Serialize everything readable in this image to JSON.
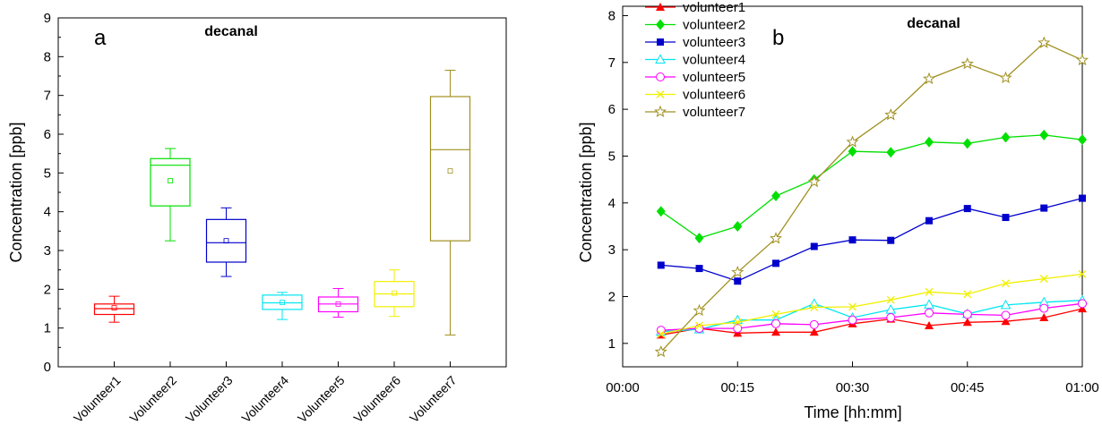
{
  "chart_data": [
    {
      "panel": "a",
      "type": "box",
      "title": "decanal",
      "xlabel": "",
      "ylabel": "Concentration [ppb]",
      "ylim": [
        0,
        9
      ],
      "yticks": [
        0,
        1,
        2,
        3,
        4,
        5,
        6,
        7,
        8,
        9
      ],
      "categories": [
        "Volunteer1",
        "Volunteer2",
        "Volunteer3",
        "Volunteer4",
        "Volunteer5",
        "Volunteer6",
        "Volunteer7"
      ],
      "boxes": [
        {
          "name": "Volunteer1",
          "color": "#ff0000",
          "min": 1.15,
          "q1": 1.35,
          "median": 1.5,
          "q3": 1.62,
          "max": 1.82,
          "mean": 1.52
        },
        {
          "name": "Volunteer2",
          "color": "#00e000",
          "min": 3.25,
          "q1": 4.15,
          "median": 5.2,
          "q3": 5.37,
          "max": 5.63,
          "mean": 4.8
        },
        {
          "name": "Volunteer3",
          "color": "#0000cc",
          "min": 2.33,
          "q1": 2.7,
          "median": 3.2,
          "q3": 3.8,
          "max": 4.1,
          "mean": 3.25
        },
        {
          "name": "Volunteer4",
          "color": "#00e6f0",
          "min": 1.22,
          "q1": 1.48,
          "median": 1.65,
          "q3": 1.85,
          "max": 1.92,
          "mean": 1.66
        },
        {
          "name": "Volunteer5",
          "color": "#ff00ff",
          "min": 1.28,
          "q1": 1.42,
          "median": 1.62,
          "q3": 1.8,
          "max": 2.02,
          "mean": 1.62
        },
        {
          "name": "Volunteer6",
          "color": "#f0f000",
          "min": 1.3,
          "q1": 1.55,
          "median": 1.88,
          "q3": 2.2,
          "max": 2.5,
          "mean": 1.9
        },
        {
          "name": "Volunteer7",
          "color": "#a09020",
          "min": 0.82,
          "q1": 3.25,
          "median": 5.6,
          "q3": 6.97,
          "max": 7.65,
          "mean": 5.05
        }
      ]
    },
    {
      "panel": "b",
      "type": "line",
      "title": "decanal",
      "xlabel": "Time [hh:mm]",
      "ylabel": "Concentration [ppb]",
      "xlim": [
        0,
        60
      ],
      "ylim": [
        0.5,
        8.2
      ],
      "xticks": [
        0,
        15,
        30,
        45,
        60
      ],
      "xtick_labels": [
        "00:00",
        "00:15",
        "00:30",
        "00:45",
        "01:00"
      ],
      "yticks": [
        1,
        2,
        3,
        4,
        5,
        6,
        7,
        8
      ],
      "legend_position": "top-left",
      "x": [
        5,
        10,
        15,
        20,
        25,
        30,
        35,
        40,
        45,
        50,
        55,
        60
      ],
      "series": [
        {
          "name": "volunteer1",
          "color": "#ff0000",
          "marker": "triangle",
          "values": [
            1.18,
            1.32,
            1.22,
            1.24,
            1.24,
            1.42,
            1.52,
            1.38,
            1.45,
            1.47,
            1.55,
            1.74
          ]
        },
        {
          "name": "volunteer2",
          "color": "#00e000",
          "marker": "diamond",
          "values": [
            3.82,
            3.25,
            3.5,
            4.15,
            4.5,
            5.1,
            5.08,
            5.3,
            5.27,
            5.4,
            5.45,
            5.35
          ]
        },
        {
          "name": "volunteer3",
          "color": "#0000cc",
          "marker": "square",
          "values": [
            2.67,
            2.6,
            2.33,
            2.71,
            3.07,
            3.21,
            3.2,
            3.62,
            3.88,
            3.69,
            3.89,
            4.1
          ]
        },
        {
          "name": "volunteer4",
          "color": "#00e6f0",
          "marker": "triangle-open",
          "values": [
            1.25,
            1.3,
            1.5,
            1.5,
            1.85,
            1.55,
            1.72,
            1.83,
            1.63,
            1.82,
            1.88,
            1.92
          ]
        },
        {
          "name": "volunteer5",
          "color": "#ff00ff",
          "marker": "circle-open",
          "values": [
            1.28,
            1.32,
            1.32,
            1.42,
            1.4,
            1.5,
            1.55,
            1.65,
            1.62,
            1.6,
            1.75,
            1.85
          ]
        },
        {
          "name": "volunteer6",
          "color": "#f0f000",
          "marker": "cross",
          "values": [
            1.2,
            1.38,
            1.45,
            1.62,
            1.77,
            1.78,
            1.93,
            2.1,
            2.05,
            2.28,
            2.38,
            2.48
          ]
        },
        {
          "name": "volunteer7",
          "color": "#a09020",
          "marker": "star-open",
          "values": [
            0.82,
            1.7,
            2.52,
            3.24,
            4.45,
            5.3,
            5.88,
            6.65,
            6.97,
            6.67,
            7.42,
            7.05
          ]
        }
      ]
    }
  ],
  "panels": {
    "a": {
      "label": "a",
      "title": "decanal",
      "ylabel": "Concentration [ppb]"
    },
    "b": {
      "label": "b",
      "title": "decanal",
      "xlabel": "Time [hh:mm]",
      "ylabel": "Concentration [ppb]"
    }
  }
}
